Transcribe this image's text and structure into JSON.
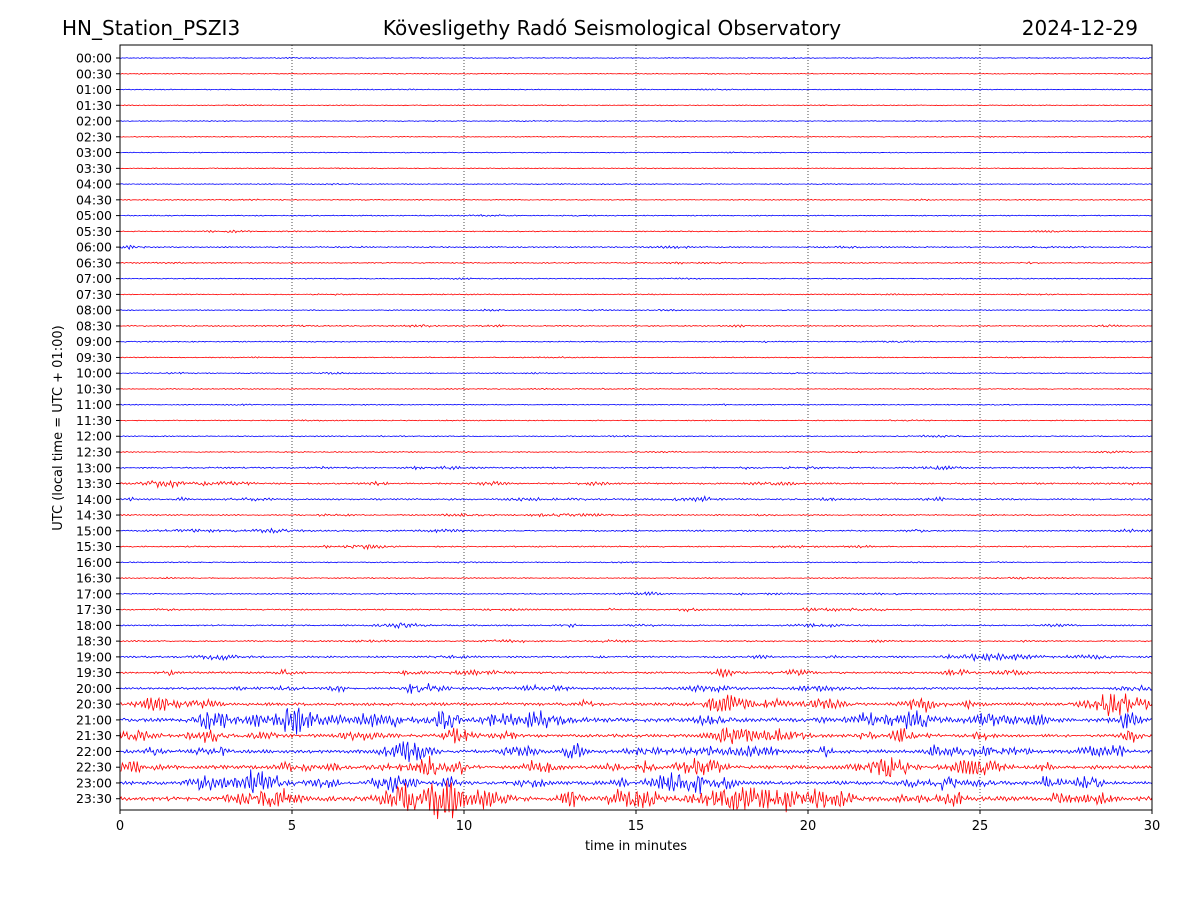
{
  "header": {
    "station": "HN_Station_PSZI3",
    "observatory": "Kövesligethy Radó Seismological Observatory",
    "date": "2024-12-29"
  },
  "chart_data": {
    "type": "line",
    "title": "Kövesligethy Radó Seismological Observatory",
    "xlabel": "time in minutes",
    "ylabel": "UTC (local time = UTC + 01:00)",
    "xlim": [
      0,
      30
    ],
    "xticks": [
      0,
      5,
      10,
      15,
      20,
      25,
      30
    ],
    "grid": "vertical-dotted",
    "colors": {
      "even": "#0000ff",
      "odd": "#ff0000"
    },
    "rows": [
      "00:00",
      "00:30",
      "01:00",
      "01:30",
      "02:00",
      "02:30",
      "03:00",
      "03:30",
      "04:00",
      "04:30",
      "05:00",
      "05:30",
      "06:00",
      "06:30",
      "07:00",
      "07:30",
      "08:00",
      "08:30",
      "09:00",
      "09:30",
      "10:00",
      "10:30",
      "11:00",
      "11:30",
      "12:00",
      "12:30",
      "13:00",
      "13:30",
      "14:00",
      "14:30",
      "15:00",
      "15:30",
      "16:00",
      "16:30",
      "17:00",
      "17:30",
      "18:00",
      "18:30",
      "19:00",
      "19:30",
      "20:00",
      "20:30",
      "21:00",
      "21:30",
      "22:00",
      "22:30",
      "23:00",
      "23:30"
    ],
    "activity": [
      0.03,
      0.03,
      0.04,
      0.03,
      0.03,
      0.03,
      0.03,
      0.03,
      0.04,
      0.05,
      0.06,
      0.08,
      0.12,
      0.08,
      0.05,
      0.07,
      0.06,
      0.1,
      0.08,
      0.05,
      0.07,
      0.05,
      0.05,
      0.05,
      0.06,
      0.08,
      0.18,
      0.22,
      0.22,
      0.12,
      0.18,
      0.12,
      0.07,
      0.06,
      0.1,
      0.15,
      0.14,
      0.14,
      0.25,
      0.28,
      0.32,
      0.55,
      0.8,
      0.55,
      0.65,
      0.7,
      0.7,
      0.85
    ]
  }
}
